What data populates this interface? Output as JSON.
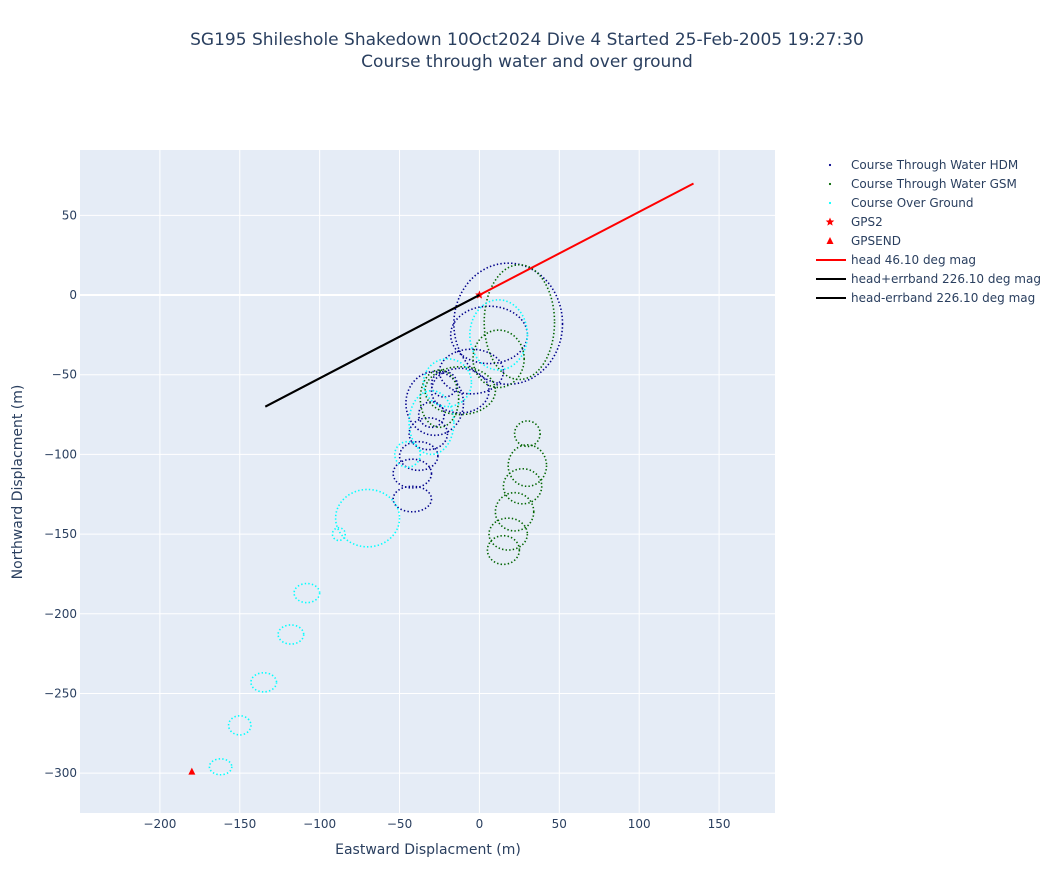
{
  "chart_data": {
    "type": "scatter",
    "title": "SG195 Shileshole Shakedown 10Oct2024 Dive 4 Started 25-Feb-2005 19:27:30",
    "subtitle": "Course through water and over ground",
    "xlabel": "Eastward Displacment (m)",
    "ylabel": "Northward Displacment (m)",
    "xlim": [
      -250,
      185
    ],
    "ylim": [
      -325,
      91
    ],
    "xticks": [
      -200,
      -150,
      -100,
      -50,
      0,
      50,
      100,
      150
    ],
    "yticks": [
      50,
      0,
      -50,
      -100,
      -150,
      -200,
      -250,
      -300
    ],
    "grid": true,
    "legend_position": "right",
    "background_color": "#e5ecf6",
    "series": [
      {
        "name": "Course Through Water HDM",
        "mode": "dotted-loops",
        "color": "#00008b",
        "path": [
          [
            0,
            0
          ],
          [
            -35,
            -125
          ],
          [
            40,
            -20
          ]
        ],
        "loops": [
          {
            "cx": 18,
            "cy": -18,
            "rx": 34,
            "ry": 38
          },
          {
            "cx": 6,
            "cy": -25,
            "rx": 24,
            "ry": 18
          },
          {
            "cx": -5,
            "cy": -48,
            "rx": 20,
            "ry": 14
          },
          {
            "cx": -12,
            "cy": -60,
            "rx": 18,
            "ry": 14
          },
          {
            "cx": -28,
            "cy": -68,
            "rx": 18,
            "ry": 20
          },
          {
            "cx": -22,
            "cy": -56,
            "rx": 8,
            "ry": 8
          },
          {
            "cx": -30,
            "cy": -75,
            "rx": 8,
            "ry": 8
          },
          {
            "cx": -32,
            "cy": -87,
            "rx": 12,
            "ry": 10
          },
          {
            "cx": -38,
            "cy": -101,
            "rx": 12,
            "ry": 9
          },
          {
            "cx": -42,
            "cy": -112,
            "rx": 12,
            "ry": 9
          },
          {
            "cx": -42,
            "cy": -128,
            "rx": 12,
            "ry": 8
          }
        ]
      },
      {
        "name": "Course Through Water GSM",
        "mode": "dotted-loops",
        "color": "#006400",
        "loops": [
          {
            "cx": 25,
            "cy": -17,
            "rx": 22,
            "ry": 36
          },
          {
            "cx": 12,
            "cy": -40,
            "rx": 16,
            "ry": 18
          },
          {
            "cx": -12,
            "cy": -60,
            "rx": 22,
            "ry": 15
          },
          {
            "cx": -25,
            "cy": -65,
            "rx": 12,
            "ry": 18
          },
          {
            "cx": 30,
            "cy": -87,
            "rx": 8,
            "ry": 8
          },
          {
            "cx": 30,
            "cy": -107,
            "rx": 12,
            "ry": 13
          },
          {
            "cx": 27,
            "cy": -120,
            "rx": 12,
            "ry": 11
          },
          {
            "cx": 22,
            "cy": -136,
            "rx": 12,
            "ry": 12
          },
          {
            "cx": 18,
            "cy": -150,
            "rx": 12,
            "ry": 10
          },
          {
            "cx": 15,
            "cy": -160,
            "rx": 10,
            "ry": 9
          }
        ]
      },
      {
        "name": "Course Over Ground",
        "mode": "dotted-loops",
        "color": "#00ffff",
        "loops": [
          {
            "cx": 12,
            "cy": -25,
            "rx": 18,
            "ry": 22
          },
          {
            "cx": -20,
            "cy": -55,
            "rx": 15,
            "ry": 15
          },
          {
            "cx": -30,
            "cy": -80,
            "rx": 14,
            "ry": 20
          },
          {
            "cx": -45,
            "cy": -100,
            "rx": 8,
            "ry": 8
          },
          {
            "cx": -70,
            "cy": -140,
            "rx": 20,
            "ry": 18
          },
          {
            "cx": -88,
            "cy": -150,
            "rx": 4,
            "ry": 4
          },
          {
            "cx": -108,
            "cy": -187,
            "rx": 8,
            "ry": 6
          },
          {
            "cx": -118,
            "cy": -213,
            "rx": 8,
            "ry": 6
          },
          {
            "cx": -135,
            "cy": -243,
            "rx": 8,
            "ry": 6
          },
          {
            "cx": -150,
            "cy": -270,
            "rx": 7,
            "ry": 6
          },
          {
            "cx": -162,
            "cy": -296,
            "rx": 7,
            "ry": 5
          }
        ]
      },
      {
        "name": "GPS2",
        "mode": "markers",
        "symbol": "star",
        "color": "#ff0000",
        "x": [
          0
        ],
        "y": [
          0
        ]
      },
      {
        "name": "GPSEND",
        "mode": "markers",
        "symbol": "triangle-up",
        "color": "#ff0000",
        "x": [
          -180
        ],
        "y": [
          -299
        ]
      },
      {
        "name": "head 46.10 deg mag",
        "mode": "line",
        "color": "#ff0000",
        "x": [
          0,
          134
        ],
        "y": [
          0,
          70
        ]
      },
      {
        "name": "head+errband 226.10 deg mag",
        "mode": "line",
        "color": "#000000",
        "x": [
          0,
          -134
        ],
        "y": [
          0,
          -70
        ]
      },
      {
        "name": "head-errband 226.10 deg mag",
        "mode": "line",
        "color": "#000000",
        "x": [
          0,
          -134
        ],
        "y": [
          0,
          -70
        ]
      }
    ]
  }
}
